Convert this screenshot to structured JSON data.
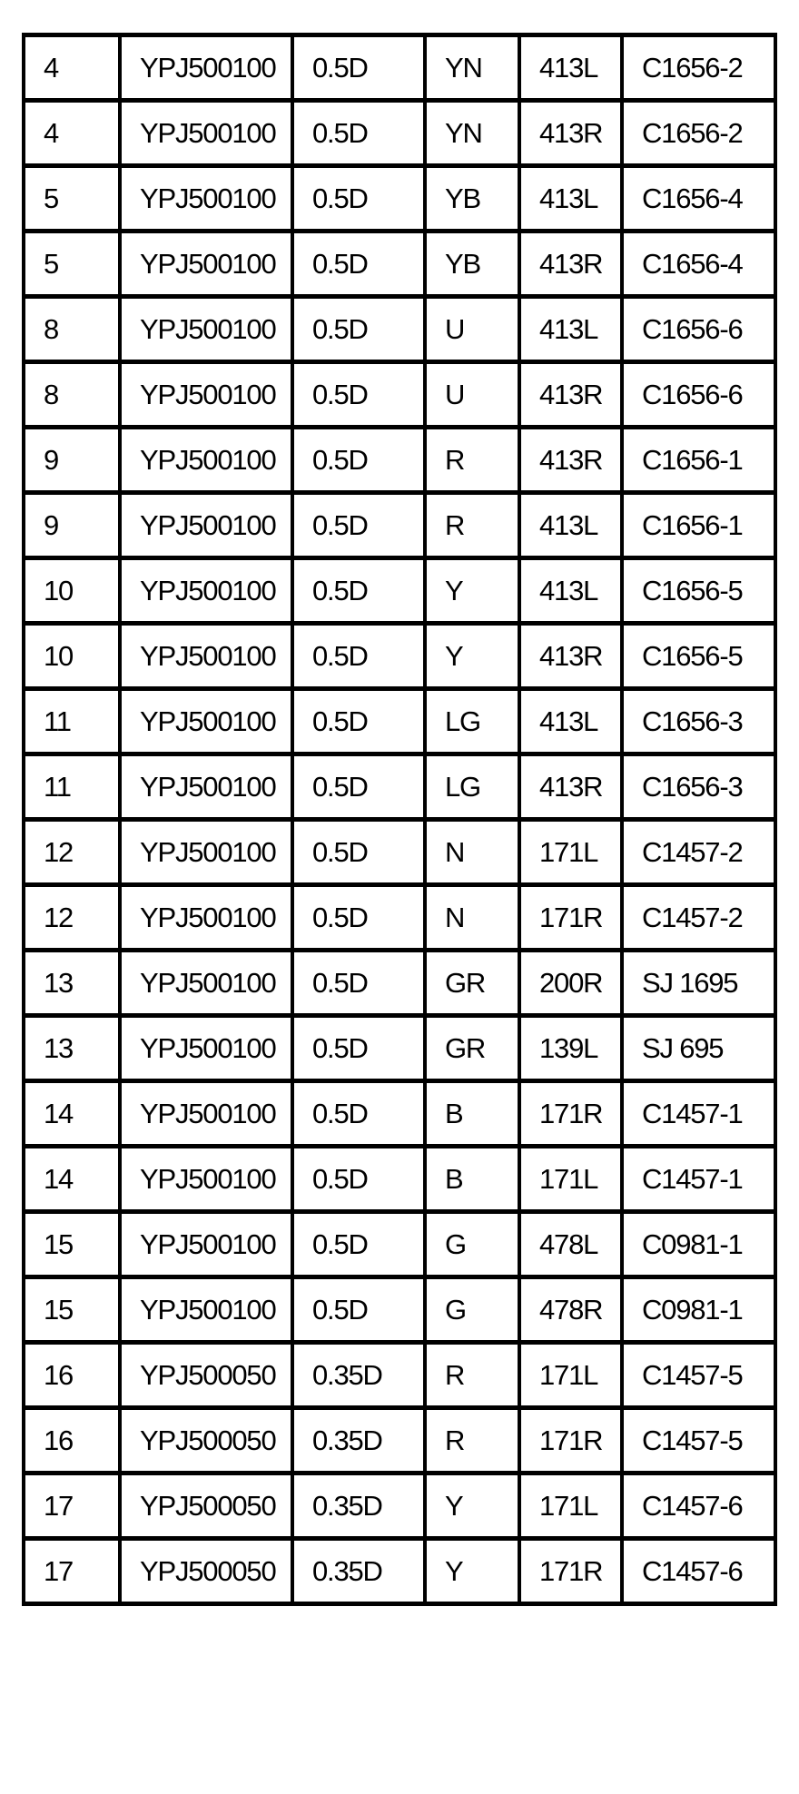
{
  "table": {
    "rows": [
      [
        "4",
        "YPJ500100",
        "0.5D",
        "YN",
        "413L",
        "C1656-2"
      ],
      [
        "4",
        "YPJ500100",
        "0.5D",
        "YN",
        "413R",
        "C1656-2"
      ],
      [
        "5",
        "YPJ500100",
        "0.5D",
        "YB",
        "413L",
        "C1656-4"
      ],
      [
        "5",
        "YPJ500100",
        "0.5D",
        "YB",
        "413R",
        "C1656-4"
      ],
      [
        "8",
        "YPJ500100",
        "0.5D",
        "U",
        "413L",
        "C1656-6"
      ],
      [
        "8",
        "YPJ500100",
        "0.5D",
        "U",
        "413R",
        "C1656-6"
      ],
      [
        "9",
        "YPJ500100",
        "0.5D",
        "R",
        "413R",
        "C1656-1"
      ],
      [
        "9",
        "YPJ500100",
        "0.5D",
        "R",
        "413L",
        "C1656-1"
      ],
      [
        "10",
        "YPJ500100",
        "0.5D",
        "Y",
        "413L",
        "C1656-5"
      ],
      [
        "10",
        "YPJ500100",
        "0.5D",
        "Y",
        "413R",
        "C1656-5"
      ],
      [
        "11",
        "YPJ500100",
        "0.5D",
        "LG",
        "413L",
        "C1656-3"
      ],
      [
        "11",
        "YPJ500100",
        "0.5D",
        "LG",
        "413R",
        "C1656-3"
      ],
      [
        "12",
        "YPJ500100",
        "0.5D",
        "N",
        "171L",
        "C1457-2"
      ],
      [
        "12",
        "YPJ500100",
        "0.5D",
        "N",
        "171R",
        "C1457-2"
      ],
      [
        "13",
        "YPJ500100",
        "0.5D",
        "GR",
        "200R",
        "SJ 1695"
      ],
      [
        "13",
        "YPJ500100",
        "0.5D",
        "GR",
        "139L",
        "SJ 695"
      ],
      [
        "14",
        "YPJ500100",
        "0.5D",
        "B",
        "171R",
        "C1457-1"
      ],
      [
        "14",
        "YPJ500100",
        "0.5D",
        "B",
        "171L",
        "C1457-1"
      ],
      [
        "15",
        "YPJ500100",
        "0.5D",
        "G",
        "478L",
        "C0981-1"
      ],
      [
        "15",
        "YPJ500100",
        "0.5D",
        "G",
        "478R",
        "C0981-1"
      ],
      [
        "16",
        "YPJ500050",
        "0.35D",
        "R",
        "171L",
        "C1457-5"
      ],
      [
        "16",
        "YPJ500050",
        "0.35D",
        "R",
        "171R",
        "C1457-5"
      ],
      [
        "17",
        "YPJ500050",
        "0.35D",
        "Y",
        "171L",
        "C1457-6"
      ],
      [
        "17",
        "YPJ500050",
        "0.35D",
        "Y",
        "171R",
        "C1457-6"
      ]
    ]
  }
}
